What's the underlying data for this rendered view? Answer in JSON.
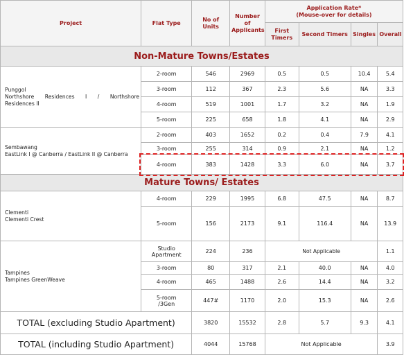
{
  "headers": {
    "project": "Project",
    "flat_type": "Flat Type",
    "no_of_units": "No of Units",
    "number_of_applicants": "Number of Applicants",
    "application_rate": "Application Rate*",
    "mouse_over": "(Mouse-over for details)",
    "first_timers": "First Timers",
    "second_timers": "Second Timers",
    "singles": "Singles",
    "overall": "Overall"
  },
  "sections": {
    "non_mature": "Non-Mature Towns/Estates",
    "mature": "Mature Towns/ Estates"
  },
  "projects": {
    "punggol": {
      "line1": "Punggol",
      "line2a": "Northshore",
      "line2b": "Residences",
      "line2c": "I",
      "line2d": "/",
      "line2e": "Northshore",
      "line3": "Residences II",
      "rows": [
        {
          "type": "2-room",
          "units": "546",
          "applicants": "2969",
          "first": "0.5",
          "second": "0.5",
          "singles": "10.4",
          "overall": "5.4"
        },
        {
          "type": "3-room",
          "units": "112",
          "applicants": "367",
          "first": "2.3",
          "second": "5.6",
          "singles": "NA",
          "overall": "3.3"
        },
        {
          "type": "4-room",
          "units": "519",
          "applicants": "1001",
          "first": "1.7",
          "second": "3.2",
          "singles": "NA",
          "overall": "1.9"
        },
        {
          "type": "5-room",
          "units": "225",
          "applicants": "658",
          "first": "1.8",
          "second": "4.1",
          "singles": "NA",
          "overall": "2.9"
        }
      ]
    },
    "sembawang": {
      "line1": "Sembawang",
      "line2": "EastLink I @ Canberra / EastLink II @ Canberra",
      "rows": [
        {
          "type": "2-room",
          "units": "403",
          "applicants": "1652",
          "first": "0.2",
          "second": "0.4",
          "singles": "7.9",
          "overall": "4.1"
        },
        {
          "type": "3-room",
          "units": "255",
          "applicants": "314",
          "first": "0.9",
          "second": "2.1",
          "singles": "NA",
          "overall": "1.2"
        },
        {
          "type": "4-room",
          "units": "383",
          "applicants": "1428",
          "first": "3.3",
          "second": "6.0",
          "singles": "NA",
          "overall": "3.7"
        }
      ]
    },
    "clementi": {
      "line1": "Clementi",
      "line2": "Clementi Crest",
      "rows": [
        {
          "type": "4-room",
          "units": "229",
          "applicants": "1995",
          "first": "6.8",
          "second": "47.5",
          "singles": "NA",
          "overall": "8.7"
        },
        {
          "type": "5-room",
          "units": "156",
          "applicants": "2173",
          "first": "9.1",
          "second": "116.4",
          "singles": "NA",
          "overall": "13.9"
        }
      ]
    },
    "tampines": {
      "line1": "Tampines",
      "line2": "Tampines GreenWeave",
      "studio": {
        "type_line1": "Studio",
        "type_line2": "Apartment",
        "units": "224",
        "applicants": "236",
        "not_applicable": "Not Applicable",
        "overall": "1.1"
      },
      "rows": [
        {
          "type": "3-room",
          "units": "80",
          "applicants": "317",
          "first": "2.1",
          "second": "40.0",
          "singles": "NA",
          "overall": "4.0"
        },
        {
          "type": "4-room",
          "units": "465",
          "applicants": "1488",
          "first": "2.6",
          "second": "14.4",
          "singles": "NA",
          "overall": "3.2"
        }
      ],
      "gen": {
        "type_line1": "5-room",
        "type_line2": "/3Gen",
        "units": "447#",
        "applicants": "1170",
        "first": "2.0",
        "second": "15.3",
        "singles": "NA",
        "overall": "2.6"
      }
    }
  },
  "totals": {
    "excluding": {
      "label": "TOTAL (excluding Studio Apartment)",
      "units": "3820",
      "applicants": "15532",
      "first": "2.8",
      "second": "5.7",
      "singles": "9.3",
      "overall": "4.1"
    },
    "including": {
      "label": "TOTAL (including Studio Apartment)",
      "units": "4044",
      "applicants": "15768",
      "not_applicable": "Not Applicable",
      "overall": "3.9"
    }
  }
}
